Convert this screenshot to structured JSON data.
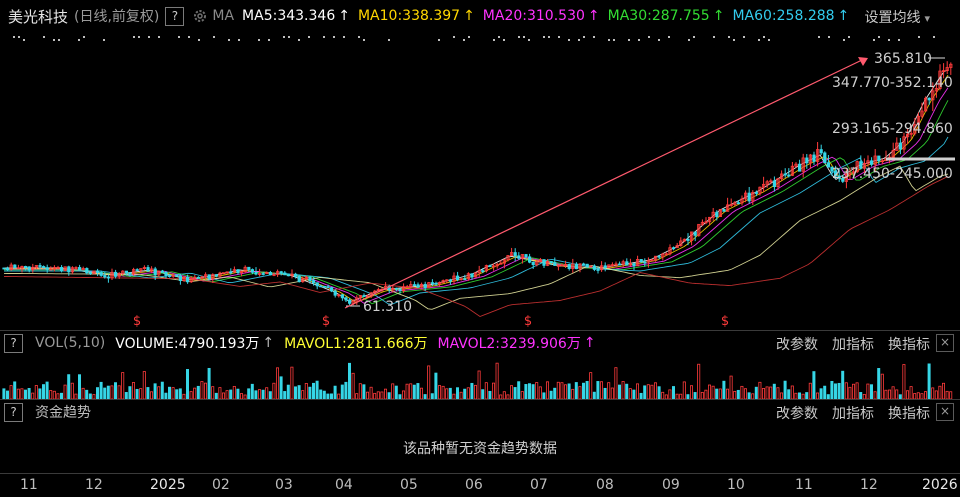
{
  "header": {
    "stock_name": "美光科技",
    "mode": "(日线,前复权)",
    "help": "?",
    "ma_label": "MA",
    "ma_items": [
      {
        "text": "MA5:343.346",
        "color": "#ffffff"
      },
      {
        "text": "MA10:338.397",
        "color": "#ffd700"
      },
      {
        "text": "MA20:310.530",
        "color": "#ff33ff"
      },
      {
        "text": "MA30:287.755",
        "color": "#33dd33"
      },
      {
        "text": "MA60:258.288",
        "color": "#33ccee"
      }
    ],
    "up_arrow": "↑",
    "settings": "设置均线",
    "settings_chevron": "▾"
  },
  "price_annotations": {
    "high": "365.810",
    "low": "61.310",
    "range_1": "347.770-352.140",
    "range_2": "293.165-294.860",
    "range_3": "237.450-245.000"
  },
  "volume_panel": {
    "help": "?",
    "label": "VOL(5,10)",
    "volume": "VOLUME:4790.193万",
    "mavol1": "MAVOL1:2811.666万",
    "mavol2": "MAVOL2:3239.906万",
    "up_arrow": "↑",
    "links": [
      "改参数",
      "加指标",
      "换指标"
    ],
    "close": "×",
    "colors": {
      "volume": "#ffffff",
      "mavol1": "#ffff33",
      "mavol2": "#ff33ff"
    }
  },
  "fund_panel": {
    "help": "?",
    "label": "资金趋势",
    "links": [
      "改参数",
      "加指标",
      "换指标"
    ],
    "close": "×",
    "no_data": "该品种暂无资金趋势数据"
  },
  "x_axis": [
    {
      "label": "11",
      "year": false
    },
    {
      "label": "12",
      "year": false
    },
    {
      "label": "2025",
      "year": true
    },
    {
      "label": "02",
      "year": false
    },
    {
      "label": "03",
      "year": false
    },
    {
      "label": "04",
      "year": false
    },
    {
      "label": "05",
      "year": false
    },
    {
      "label": "06",
      "year": false
    },
    {
      "label": "07",
      "year": false
    },
    {
      "label": "08",
      "year": false
    },
    {
      "label": "09",
      "year": false
    },
    {
      "label": "10",
      "year": false
    },
    {
      "label": "11",
      "year": false
    },
    {
      "label": "12",
      "year": false
    },
    {
      "label": "2026",
      "year": true
    }
  ],
  "colors": {
    "up": "#ff3b3b",
    "down": "#36d6e7",
    "arrow": "#ff5a6e",
    "bg": "#000000"
  }
}
